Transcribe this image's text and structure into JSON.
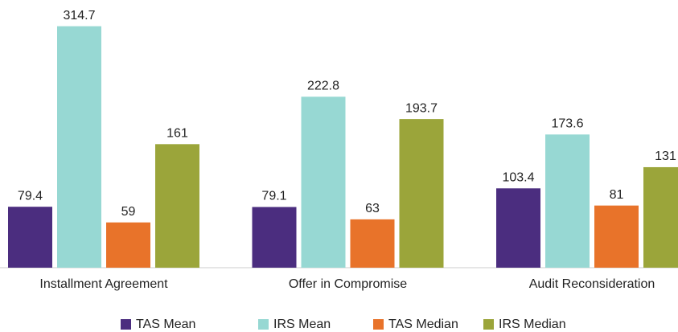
{
  "chart_data": {
    "type": "bar",
    "categories": [
      "Installment Agreement",
      "Offer in Compromise",
      "Audit Reconsideration"
    ],
    "series": [
      {
        "name": "TAS Mean",
        "color": "#4b2d7f",
        "values": [
          79.4,
          79.1,
          103.4
        ]
      },
      {
        "name": "IRS Mean",
        "color": "#97d8d3",
        "values": [
          314.7,
          222.8,
          173.6
        ]
      },
      {
        "name": "TAS Median",
        "color": "#e8732a",
        "values": [
          59,
          63,
          81
        ]
      },
      {
        "name": "IRS Median",
        "color": "#9ba53a",
        "values": [
          161,
          193.7,
          131
        ]
      }
    ],
    "ylim": [
      0,
      330
    ],
    "legend": "bottom"
  }
}
